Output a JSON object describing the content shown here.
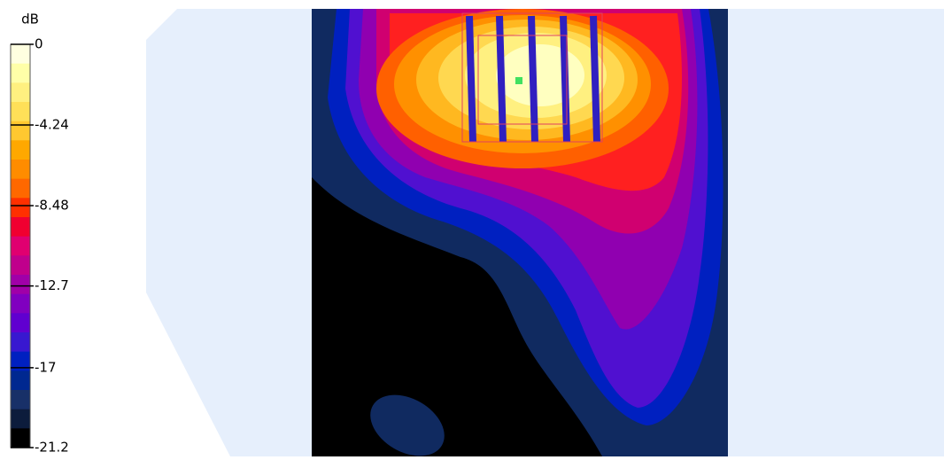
{
  "colorbar": {
    "unit": "dB",
    "ticks": [
      0,
      -4.24,
      -8.48,
      -12.7,
      -17,
      -21.2
    ]
  }
}
